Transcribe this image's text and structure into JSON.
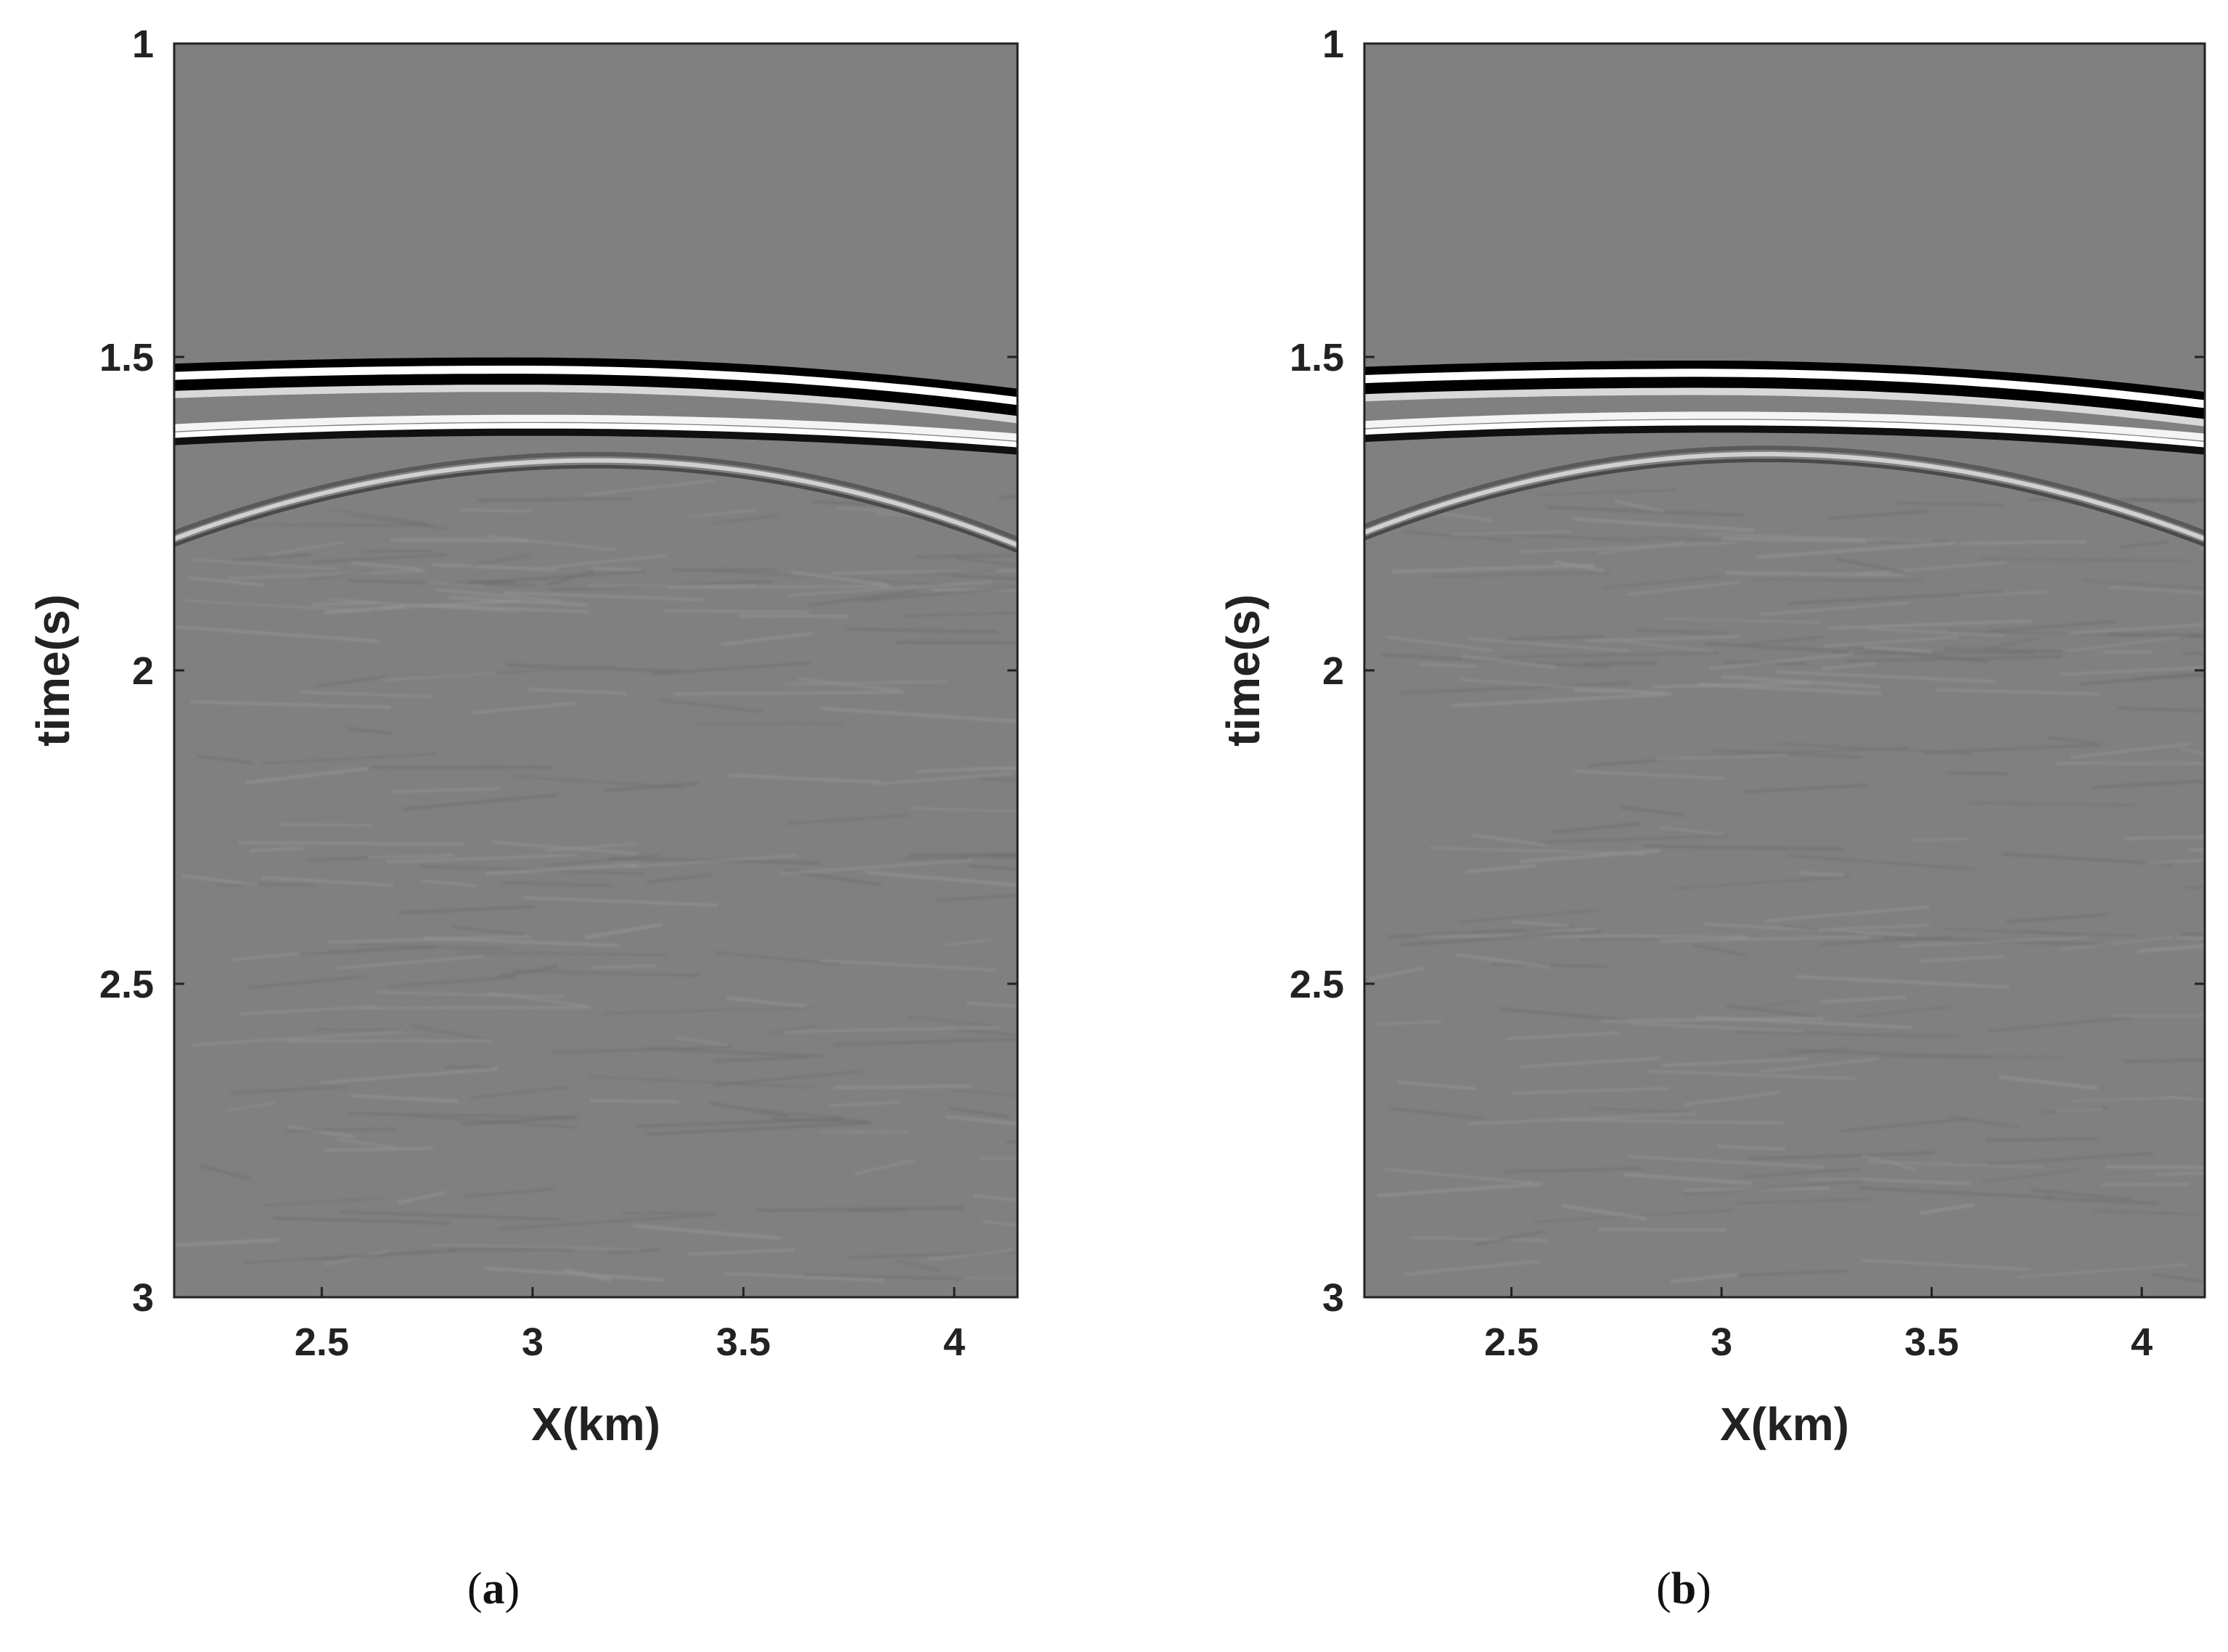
{
  "figure": {
    "panels": [
      {
        "caption_open": "(",
        "caption_letter": "a",
        "caption_close": ")"
      },
      {
        "caption_open": "(",
        "caption_letter": "b",
        "caption_close": ")"
      }
    ]
  },
  "colors": {
    "background": "#808080",
    "reflector_dark": "#000000",
    "reflector_bright": "#ffffff",
    "axis": "#222222"
  },
  "chart_data": [
    {
      "type": "heatmap",
      "title": "",
      "xlabel": "X(km)",
      "ylabel": "time(s)",
      "xlim": [
        2.15,
        4.15
      ],
      "ylim": [
        3,
        1
      ],
      "y_reversed": true,
      "colormap": "gray",
      "xticks": [
        2.5,
        3,
        3.5,
        4
      ],
      "xtick_labels": [
        "2.5",
        "3",
        "3.5",
        "4"
      ],
      "yticks": [
        1,
        1.5,
        2,
        2.5,
        3
      ],
      "ytick_labels": [
        "1",
        "1.5",
        "2",
        "2.5",
        "3"
      ],
      "grid": false,
      "events": [
        {
          "name": "direct arrival",
          "apex_x": 2.95,
          "apex_t": 1.51,
          "t_at_left": 1.52,
          "t_at_right": 1.56
        },
        {
          "name": "second arrival",
          "apex_x": 3.0,
          "apex_t": 1.61,
          "t_at_left": 1.625,
          "t_at_right": 1.64
        },
        {
          "name": "diffraction",
          "apex_x": 3.15,
          "apex_t": 1.665,
          "t_at_left": 1.79,
          "t_at_right": 1.8
        }
      ]
    },
    {
      "type": "heatmap",
      "title": "",
      "xlabel": "X(km)",
      "ylabel": "time(s)",
      "xlim": [
        2.15,
        4.15
      ],
      "ylim": [
        3,
        1
      ],
      "y_reversed": true,
      "colormap": "gray",
      "xticks": [
        2.5,
        3,
        3.5,
        4
      ],
      "xtick_labels": [
        "2.5",
        "3",
        "3.5",
        "4"
      ],
      "yticks": [
        1,
        1.5,
        2,
        2.5,
        3
      ],
      "ytick_labels": [
        "1",
        "1.5",
        "2",
        "2.5",
        "3"
      ],
      "grid": false,
      "events": [
        {
          "name": "direct arrival",
          "apex_x": 2.95,
          "apex_t": 1.515,
          "t_at_left": 1.525,
          "t_at_right": 1.565
        },
        {
          "name": "second arrival",
          "apex_x": 3.0,
          "apex_t": 1.605,
          "t_at_left": 1.62,
          "t_at_right": 1.64
        },
        {
          "name": "diffraction",
          "apex_x": 3.1,
          "apex_t": 1.655,
          "t_at_left": 1.78,
          "t_at_right": 1.79
        }
      ]
    }
  ]
}
